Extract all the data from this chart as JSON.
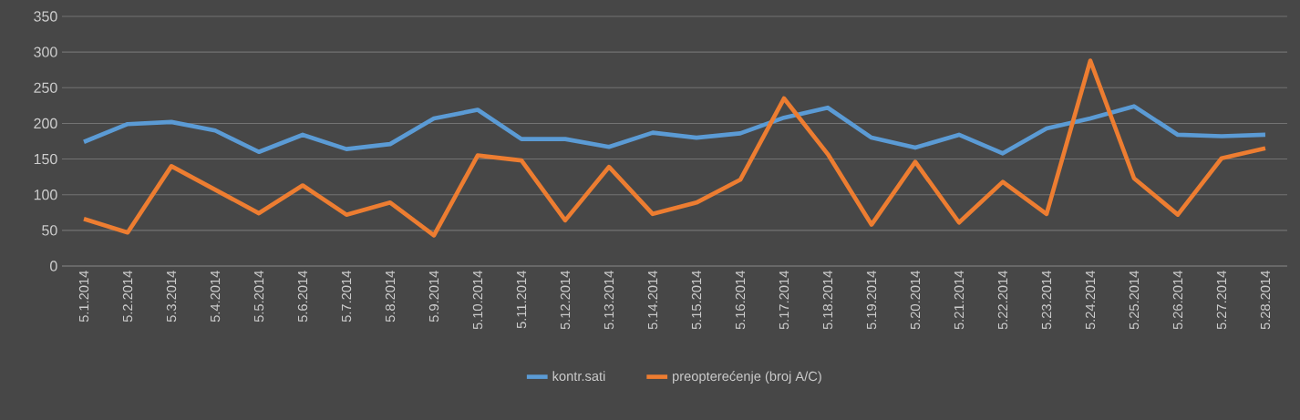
{
  "chart_data": {
    "type": "line",
    "categories": [
      "5.1.2014",
      "5.2.2014",
      "5.3.2014",
      "5.4.2014",
      "5.5.2014",
      "5.6.2014",
      "5.7.2014",
      "5.8.2014",
      "5.9.2014",
      "5.10.2014",
      "5.11.2014",
      "5.12.2014",
      "5.13.2014",
      "5.14.2014",
      "5.15.2014",
      "5.16.2014",
      "5.17.2014",
      "5.18.2014",
      "5.19.2014",
      "5.20.2014",
      "5.21.2014",
      "5.22.2014",
      "5.23.2014",
      "5.24.2014",
      "5.25.2014",
      "5.26.2014",
      "5.27.2014",
      "5.28.2014"
    ],
    "series": [
      {
        "name": "kontr.sati",
        "color": "#5b9bd5",
        "values": [
          174,
          199,
          202,
          190,
          160,
          184,
          164,
          171,
          207,
          219,
          178,
          178,
          167,
          187,
          180,
          186,
          208,
          222,
          180,
          166,
          184,
          158,
          193,
          207,
          224,
          184,
          182,
          184
        ]
      },
      {
        "name": "preopterećenje (broj A/C)",
        "color": "#ed7d31",
        "values": [
          66,
          47,
          140,
          107,
          74,
          113,
          72,
          89,
          43,
          155,
          148,
          64,
          139,
          73,
          89,
          121,
          235,
          157,
          58,
          146,
          61,
          118,
          73,
          288,
          123,
          72,
          151,
          165
        ]
      }
    ],
    "ylim": [
      0,
      350
    ],
    "yticks": [
      0,
      50,
      100,
      150,
      200,
      250,
      300,
      350
    ],
    "grid": "y",
    "legend": "bottom",
    "marker": "none",
    "line_style": "solid"
  }
}
